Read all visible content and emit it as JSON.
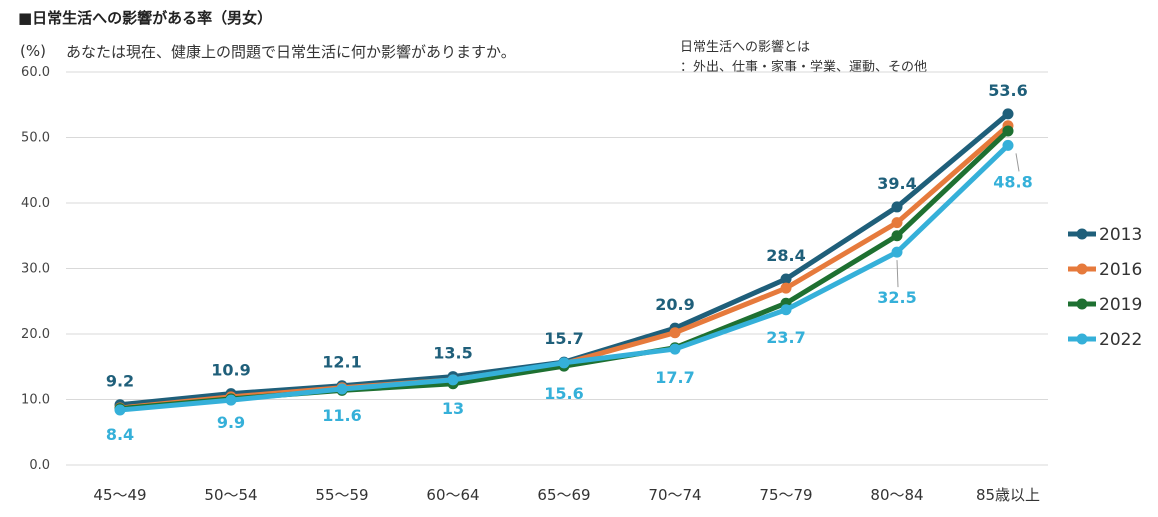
{
  "header": {
    "title": "■日常生活への影響がある率（男女）",
    "unit": "(%)",
    "question": "あなたは現在、健康上の問題で日常生活に何か影響がありますか。",
    "note_line1": "日常生活への影響とは",
    "note_line2": "：外出、仕事・家事・学業、運動、その他"
  },
  "chart_data": {
    "type": "line",
    "categories": [
      "45～49",
      "50～54",
      "55～59",
      "60～64",
      "65～69",
      "70～74",
      "75～79",
      "80～84",
      "85歳以上"
    ],
    "ylim": [
      0,
      60
    ],
    "yticks": [
      "0.0",
      "10.0",
      "20.0",
      "30.0",
      "40.0",
      "50.0",
      "60.0"
    ],
    "grid": true,
    "legend_position": "right",
    "series": [
      {
        "name": "2013",
        "color": "#1f5f7a",
        "values": [
          9.2,
          10.9,
          12.1,
          13.5,
          15.7,
          20.9,
          28.4,
          39.4,
          53.6
        ],
        "labelled": true
      },
      {
        "name": "2016",
        "color": "#e67a3c",
        "values": [
          8.7,
          10.4,
          11.8,
          13.0,
          15.5,
          20.2,
          27.0,
          37.0,
          51.8
        ],
        "labelled": false
      },
      {
        "name": "2019",
        "color": "#1e7031",
        "values": [
          8.6,
          10.1,
          11.4,
          12.4,
          15.1,
          17.9,
          24.7,
          35.0,
          51.0
        ],
        "labelled": false
      },
      {
        "name": "2022",
        "color": "#35b0d9",
        "values": [
          8.4,
          9.9,
          11.6,
          13.0,
          15.6,
          17.7,
          23.7,
          32.5,
          48.8
        ],
        "labelled": true
      }
    ],
    "data_labels": {
      "2013": [
        "9.2",
        "10.9",
        "12.1",
        "13.5",
        "15.7",
        "20.9",
        "28.4",
        "39.4",
        "53.6"
      ],
      "2022": [
        "8.4",
        "9.9",
        "11.6",
        "13",
        "15.6",
        "17.7",
        "23.7",
        "32.5",
        "48.8"
      ]
    }
  }
}
